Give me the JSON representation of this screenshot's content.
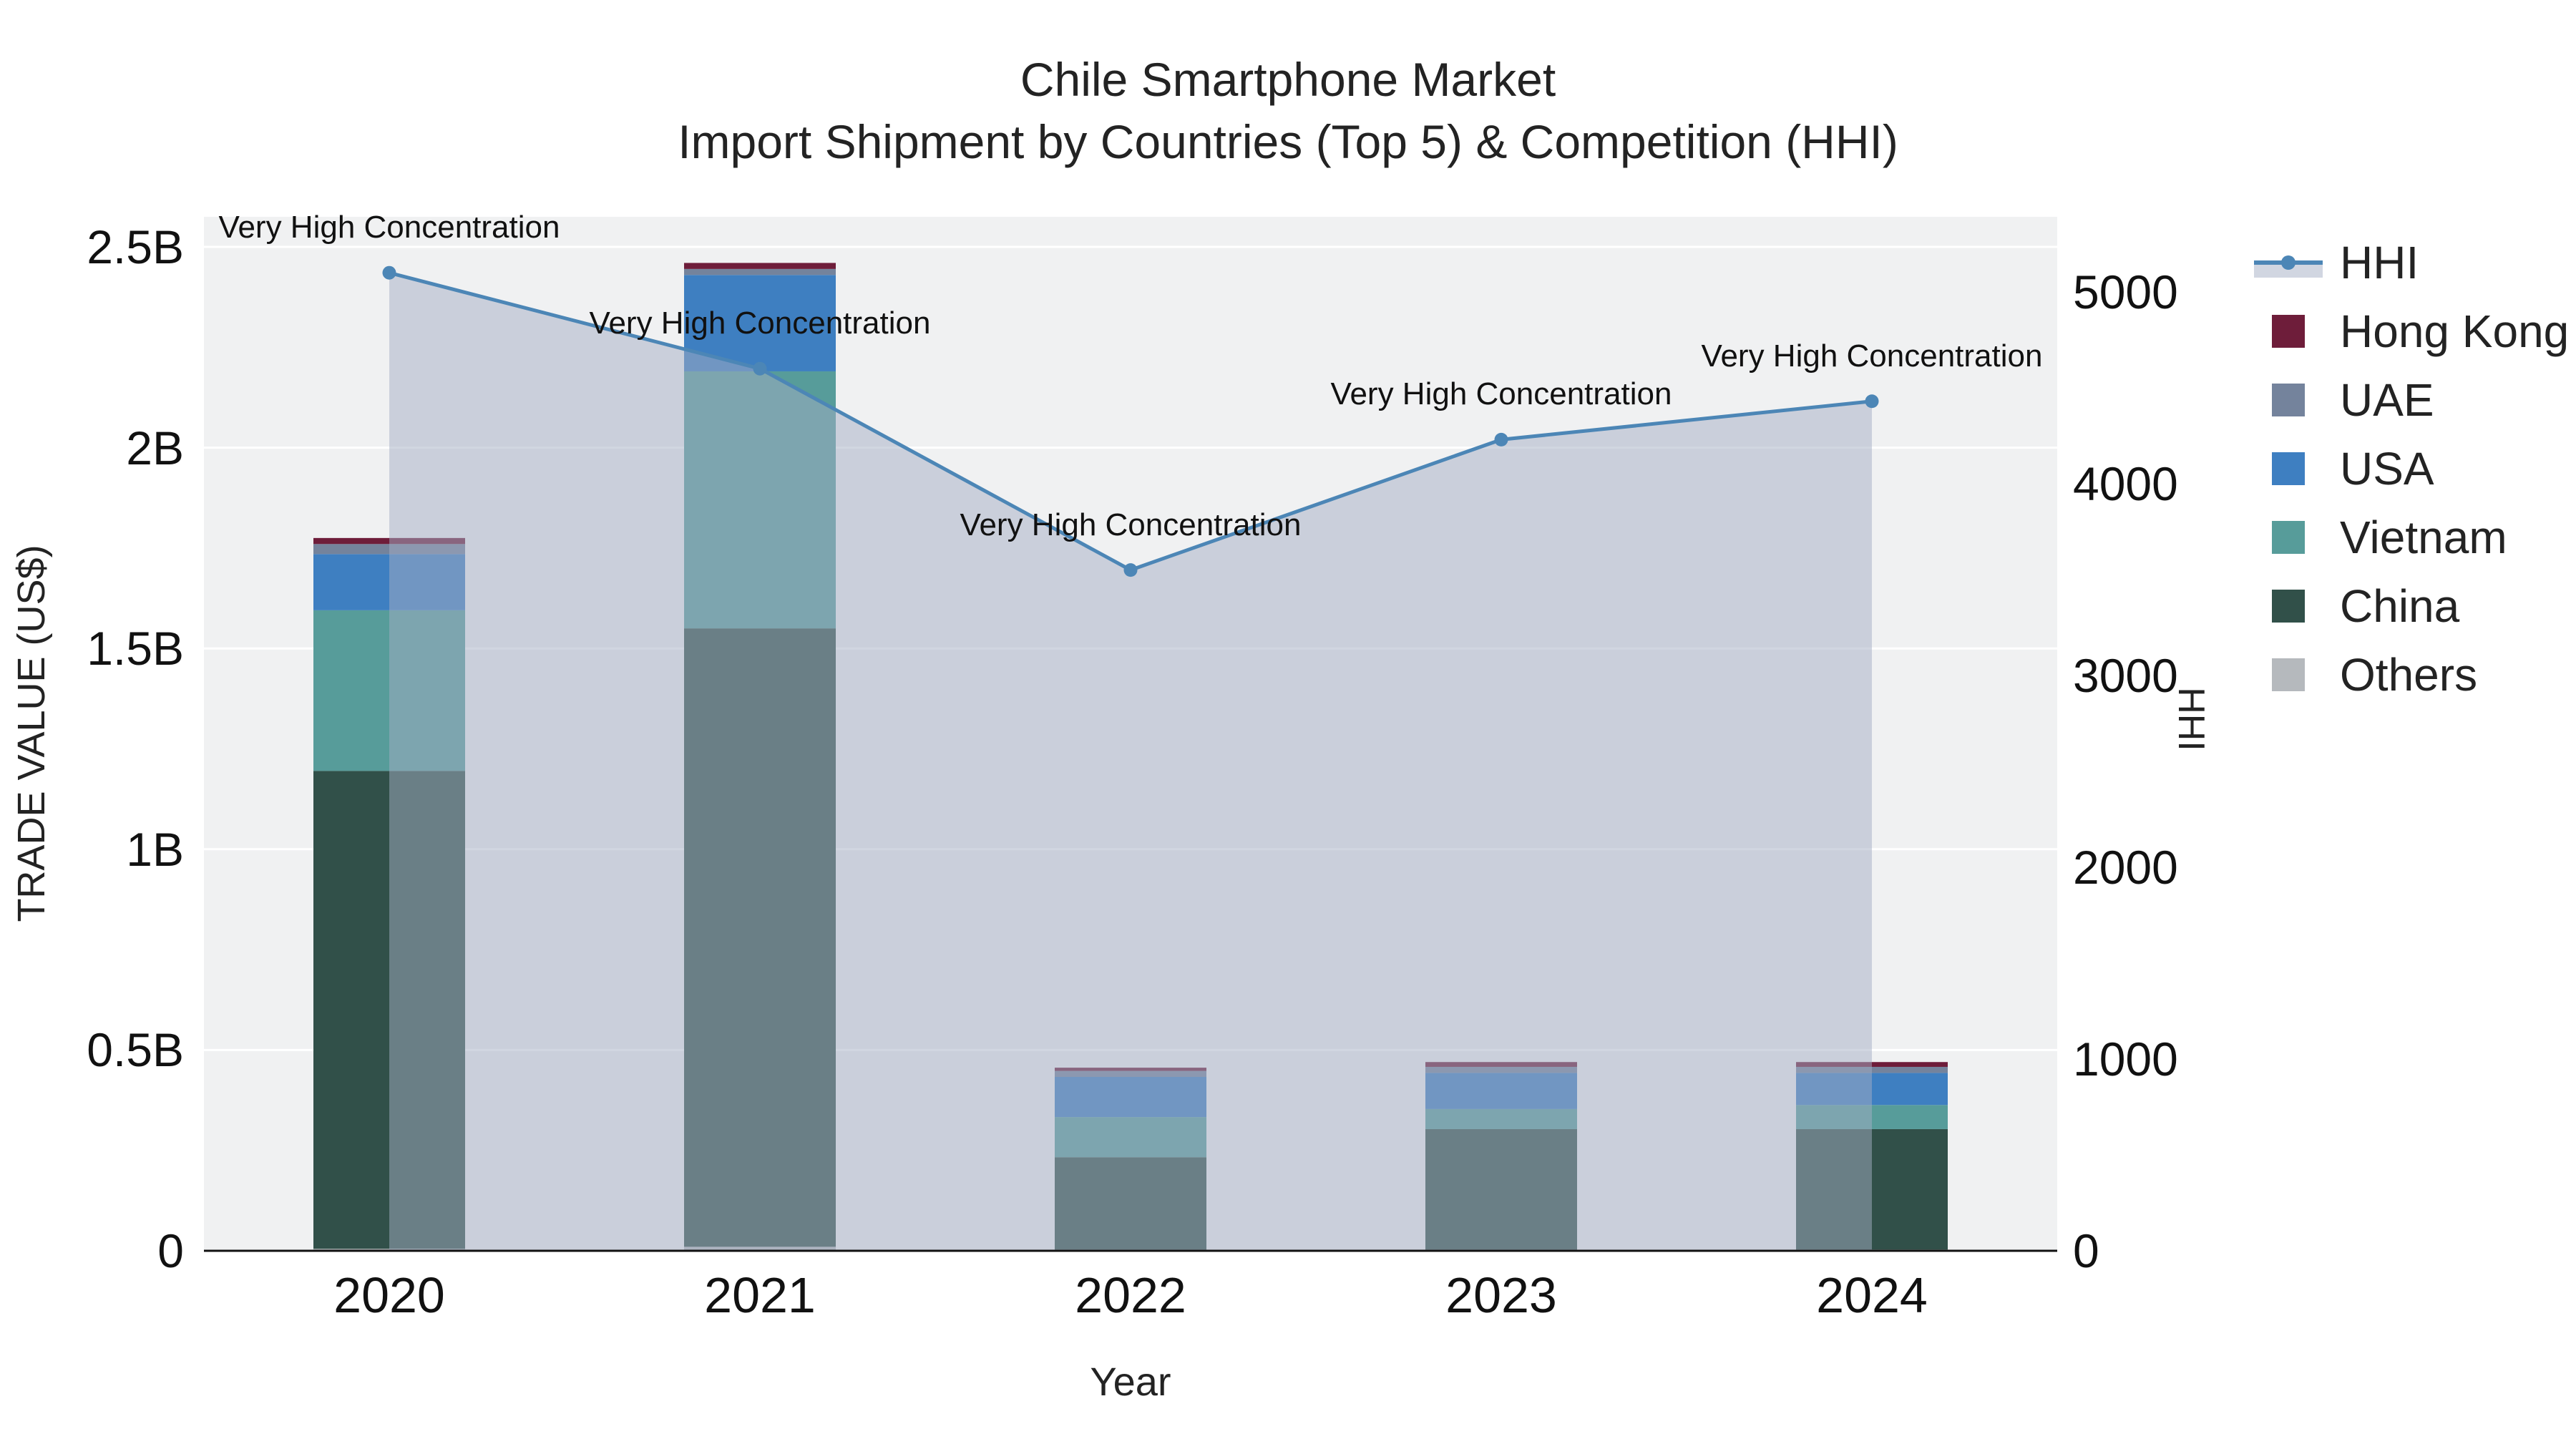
{
  "title": {
    "line1": "Chile Smartphone Market",
    "line2": "Import Shipment by Countries (Top 5) & Competition (HHI)"
  },
  "axes": {
    "x_title": "Year",
    "y_left_title": "TRADE VALUE (US$)",
    "y_right_title": "HHI",
    "x_ticks": [
      "2020",
      "2021",
      "2022",
      "2023",
      "2024"
    ],
    "y_left_tick_labels": [
      "0",
      "0.5B",
      "1B",
      "1.5B",
      "2B",
      "2.5B"
    ],
    "y_right_tick_labels": [
      "0",
      "1000",
      "2000",
      "3000",
      "4000",
      "5000"
    ]
  },
  "chart_data": {
    "type": "bar+line",
    "categories": [
      "2020",
      "2021",
      "2022",
      "2023",
      "2024"
    ],
    "bar_units": "billions of US$ (left axis)",
    "stack_order_bottom_to_top": [
      "Others",
      "China",
      "Vietnam",
      "USA",
      "UAE",
      "Hong Kong"
    ],
    "y_left_range": [
      0,
      2.5
    ],
    "y_right_range": [
      0,
      5000
    ],
    "grid": true,
    "legend_position": "right",
    "series": [
      {
        "name": "Others",
        "type": "bar",
        "color": "#b5b9bd",
        "values": [
          0.005,
          0.01,
          0.003,
          0.003,
          0.003
        ]
      },
      {
        "name": "China",
        "type": "bar",
        "color": "#315049",
        "values": [
          1.19,
          1.54,
          0.23,
          0.3,
          0.3
        ]
      },
      {
        "name": "Vietnam",
        "type": "bar",
        "color": "#579c9a",
        "values": [
          0.4,
          0.64,
          0.1,
          0.05,
          0.06
        ]
      },
      {
        "name": "USA",
        "type": "bar",
        "color": "#3e7fc1",
        "values": [
          0.14,
          0.24,
          0.1,
          0.09,
          0.08
        ]
      },
      {
        "name": "UAE",
        "type": "bar",
        "color": "#74839c",
        "values": [
          0.025,
          0.015,
          0.015,
          0.015,
          0.015
        ]
      },
      {
        "name": "Hong Kong",
        "type": "bar",
        "color": "#6e1d3a",
        "values": [
          0.015,
          0.015,
          0.008,
          0.012,
          0.012
        ]
      },
      {
        "name": "HHI",
        "type": "line",
        "axis": "right",
        "color": "#4c86b6",
        "fill_color": "rgba(163,174,196,0.5)",
        "values": [
          5100,
          4600,
          3550,
          4230,
          4430
        ]
      }
    ],
    "annotations": [
      {
        "text": "Very High Concentration",
        "x": "2020"
      },
      {
        "text": "Very High Concentration",
        "x": "2021"
      },
      {
        "text": "Very High Concentration",
        "x": "2022"
      },
      {
        "text": "Very High Concentration",
        "x": "2023"
      },
      {
        "text": "Very High Concentration",
        "x": "2024"
      }
    ]
  },
  "legend": {
    "items": [
      {
        "label": "HHI",
        "type": "line",
        "color": "#4c86b6",
        "fill": "rgba(163,174,196,0.5)"
      },
      {
        "label": "Hong Kong",
        "type": "swatch",
        "color": "#6e1d3a"
      },
      {
        "label": "UAE",
        "type": "swatch",
        "color": "#74839c"
      },
      {
        "label": "USA",
        "type": "swatch",
        "color": "#3e7fc1"
      },
      {
        "label": "Vietnam",
        "type": "swatch",
        "color": "#579c9a"
      },
      {
        "label": "China",
        "type": "swatch",
        "color": "#315049"
      },
      {
        "label": "Others",
        "type": "swatch",
        "color": "#b5b9bd"
      }
    ]
  }
}
